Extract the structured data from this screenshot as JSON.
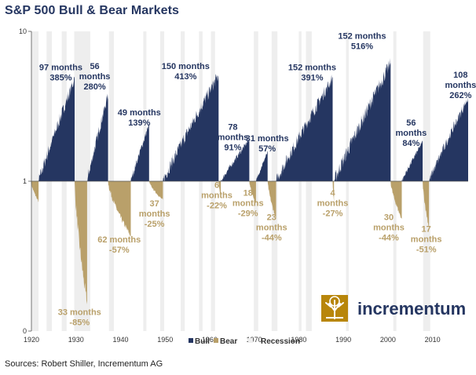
{
  "title": "S&P 500 Bull & Bear Markets",
  "source": "Sources: Robert Shiller, Incrementum AG",
  "logo": {
    "text": "incrementum",
    "icon": "tree-icon",
    "color": "#b8860b"
  },
  "colors": {
    "bull": "#253661",
    "bear": "#b9a06a",
    "recession": "#eeeeee"
  },
  "chart_data": {
    "type": "area",
    "title": "S&P 500 Bull & Bear Markets",
    "xlim": [
      1920,
      2018
    ],
    "y_scale": "log",
    "ylim": [
      0,
      10
    ],
    "x_ticks": [
      "1920",
      "1930",
      "1940",
      "1950",
      "1960",
      "1970",
      "1980",
      "1990",
      "2000",
      "2010"
    ],
    "y_ticks": [
      {
        "label": "10",
        "value": 10
      },
      {
        "label": "1",
        "value": 1
      },
      {
        "label": "0",
        "value": 0.1
      }
    ],
    "legend": {
      "position": "bottom",
      "items": [
        {
          "name": "Bull",
          "kind": "bull"
        },
        {
          "name": "Bear",
          "kind": "bear"
        },
        {
          "name": "Recession",
          "kind": "recession"
        }
      ]
    },
    "recessions": [
      [
        1920.0,
        1921.6
      ],
      [
        1923.4,
        1924.6
      ],
      [
        1926.8,
        1927.9
      ],
      [
        1929.6,
        1933.2
      ],
      [
        1937.4,
        1938.5
      ],
      [
        1945.1,
        1945.8
      ],
      [
        1948.9,
        1949.8
      ],
      [
        1953.5,
        1954.4
      ],
      [
        1957.6,
        1958.4
      ],
      [
        1960.3,
        1961.2
      ],
      [
        1969.9,
        1970.9
      ],
      [
        1973.9,
        1975.2
      ],
      [
        1980.0,
        1980.6
      ],
      [
        1981.6,
        1982.9
      ],
      [
        1990.6,
        1991.2
      ],
      [
        2001.2,
        2001.9
      ],
      [
        2007.9,
        2009.5
      ]
    ],
    "markets": [
      {
        "type": "bear",
        "start": 1919.9,
        "end": 1921.6,
        "min": 0.73
      },
      {
        "type": "bull",
        "start": 1921.6,
        "end": 1929.7,
        "peak": 4.85,
        "label": [
          "97 months",
          "385%"
        ],
        "label_x": 1926.6,
        "label_value": 5.5
      },
      {
        "type": "bear",
        "start": 1929.7,
        "end": 1932.5,
        "min": 0.15,
        "label": [
          "33 months",
          "-85%"
        ],
        "label_x": 1930.8,
        "label_value": 0.128
      },
      {
        "type": "bull",
        "start": 1932.5,
        "end": 1937.2,
        "peak": 3.8,
        "label": [
          "56",
          "months",
          "280%"
        ],
        "label_x": 1934.2,
        "label_value": 5.6
      },
      {
        "type": "bear",
        "start": 1937.2,
        "end": 1942.3,
        "min": 0.43,
        "label": [
          "62 months",
          "-57%"
        ],
        "label_x": 1939.7,
        "label_value": 0.39
      },
      {
        "type": "bull",
        "start": 1942.3,
        "end": 1946.4,
        "peak": 2.39,
        "label": [
          "49 months",
          "139%"
        ],
        "label_x": 1944.2,
        "label_value": 2.75
      },
      {
        "type": "bear",
        "start": 1946.4,
        "end": 1949.5,
        "min": 0.75,
        "label": [
          "37",
          "months",
          "-25%"
        ],
        "label_x": 1947.6,
        "label_value": 0.68
      },
      {
        "type": "bull",
        "start": 1949.5,
        "end": 1962.0,
        "peak": 5.13,
        "label": [
          "150 months",
          "413%"
        ],
        "label_x": 1954.6,
        "label_value": 5.6
      },
      {
        "type": "bear",
        "start": 1962.0,
        "end": 1962.5,
        "min": 0.78,
        "label": [
          "6",
          "months",
          "-22%"
        ],
        "label_x": 1961.6,
        "label_value": 0.9
      },
      {
        "type": "bull",
        "start": 1962.5,
        "end": 1968.9,
        "peak": 1.91,
        "label": [
          "78",
          "months",
          "91%"
        ],
        "label_x": 1965.2,
        "label_value": 2.2
      },
      {
        "type": "bear",
        "start": 1968.9,
        "end": 1970.4,
        "min": 0.71,
        "label": [
          "18",
          "months",
          "-29%"
        ],
        "label_x": 1968.6,
        "label_value": 0.8
      },
      {
        "type": "bull",
        "start": 1970.4,
        "end": 1973.0,
        "peak": 1.57,
        "label": [
          "31 months",
          "57%"
        ],
        "label_x": 1972.9,
        "label_value": 1.85
      },
      {
        "type": "bear",
        "start": 1973.0,
        "end": 1974.9,
        "min": 0.56,
        "label": [
          "23",
          "months",
          "-44%"
        ],
        "label_x": 1973.9,
        "label_value": 0.55
      },
      {
        "type": "bull",
        "start": 1974.9,
        "end": 1987.6,
        "peak": 4.91,
        "label": [
          "152 months",
          "391%"
        ],
        "label_x": 1983.0,
        "label_value": 5.5
      },
      {
        "type": "bear",
        "start": 1987.6,
        "end": 1987.9,
        "min": 0.73,
        "label": [
          "4",
          "months",
          "-27%"
        ],
        "label_x": 1987.6,
        "label_value": 0.8
      },
      {
        "type": "bull",
        "start": 1987.9,
        "end": 2000.6,
        "peak": 6.16,
        "label": [
          "152 months",
          "516%"
        ],
        "label_x": 1994.2,
        "label_value": 8.9
      },
      {
        "type": "bear",
        "start": 2000.6,
        "end": 2003.1,
        "min": 0.56,
        "label": [
          "30",
          "months",
          "-44%"
        ],
        "label_x": 2000.2,
        "label_value": 0.55
      },
      {
        "type": "bull",
        "start": 2003.1,
        "end": 2007.8,
        "peak": 1.84,
        "label": [
          "56",
          "months",
          "84%"
        ],
        "label_x": 2005.2,
        "label_value": 2.35
      },
      {
        "type": "bear",
        "start": 2007.8,
        "end": 2009.2,
        "min": 0.49,
        "label": [
          "17",
          "months",
          "-51%"
        ],
        "label_x": 2008.6,
        "label_value": 0.46
      },
      {
        "type": "bull",
        "start": 2009.2,
        "end": 2018.0,
        "peak": 3.62,
        "label": [
          "108",
          "months",
          "262%"
        ],
        "label_x": 2016.3,
        "label_value": 4.9
      }
    ]
  }
}
